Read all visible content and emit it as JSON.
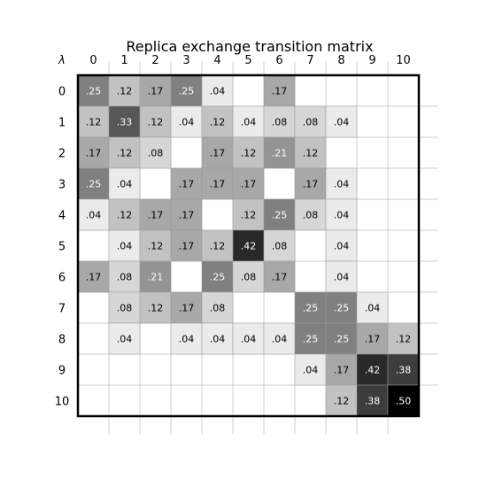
{
  "chart_data": {
    "type": "heatmap",
    "title": "Replica exchange transition matrix",
    "axis_symbol": "λ",
    "x_ticks": [
      "0",
      "1",
      "2",
      "3",
      "4",
      "5",
      "6",
      "7",
      "8",
      "9",
      "10"
    ],
    "y_ticks": [
      "0",
      "1",
      "2",
      "3",
      "4",
      "5",
      "6",
      "7",
      "8",
      "9",
      "10"
    ],
    "colormap": "gray_r",
    "value_range": [
      0,
      0.5
    ],
    "grid": true,
    "matrix": [
      [
        0.25,
        0.12,
        0.17,
        0.25,
        0.04,
        null,
        0.17,
        null,
        null,
        null,
        null
      ],
      [
        0.12,
        0.33,
        0.12,
        0.04,
        0.12,
        0.04,
        0.08,
        0.08,
        0.04,
        null,
        null
      ],
      [
        0.17,
        0.12,
        0.08,
        null,
        0.17,
        0.12,
        0.21,
        0.12,
        null,
        null,
        null
      ],
      [
        0.25,
        0.04,
        null,
        0.17,
        0.17,
        0.17,
        null,
        0.17,
        0.04,
        null,
        null
      ],
      [
        0.04,
        0.12,
        0.17,
        0.17,
        null,
        0.12,
        0.25,
        0.08,
        0.04,
        null,
        null
      ],
      [
        null,
        0.04,
        0.12,
        0.17,
        0.12,
        0.42,
        0.08,
        null,
        0.04,
        null,
        null
      ],
      [
        0.17,
        0.08,
        0.21,
        null,
        0.25,
        0.08,
        0.17,
        null,
        0.04,
        null,
        null
      ],
      [
        null,
        0.08,
        0.12,
        0.17,
        0.08,
        null,
        null,
        0.25,
        0.25,
        0.04,
        null
      ],
      [
        null,
        0.04,
        null,
        0.04,
        0.04,
        0.04,
        0.04,
        0.25,
        0.25,
        0.17,
        0.12
      ],
      [
        null,
        null,
        null,
        null,
        null,
        null,
        null,
        0.04,
        0.17,
        0.42,
        0.38
      ],
      [
        null,
        null,
        null,
        null,
        null,
        null,
        null,
        null,
        0.12,
        0.38,
        0.5
      ]
    ],
    "labels": [
      [
        ".25",
        ".12",
        ".17",
        ".25",
        ".04",
        "",
        ".17",
        "",
        "",
        "",
        ""
      ],
      [
        ".12",
        ".33",
        ".12",
        ".04",
        ".12",
        ".04",
        ".08",
        ".08",
        ".04",
        "",
        ""
      ],
      [
        ".17",
        ".12",
        ".08",
        "",
        ".17",
        ".12",
        ".21",
        ".12",
        "",
        "",
        ""
      ],
      [
        ".25",
        ".04",
        "",
        ".17",
        ".17",
        ".17",
        "",
        ".17",
        ".04",
        "",
        ""
      ],
      [
        ".04",
        ".12",
        ".17",
        ".17",
        "",
        ".12",
        ".25",
        ".08",
        ".04",
        "",
        ""
      ],
      [
        "",
        ".04",
        ".12",
        ".17",
        ".12",
        ".42",
        ".08",
        "",
        ".04",
        "",
        ""
      ],
      [
        ".17",
        ".08",
        ".21",
        "",
        ".25",
        ".08",
        ".17",
        "",
        ".04",
        "",
        ""
      ],
      [
        "",
        ".08",
        ".12",
        ".17",
        ".08",
        "",
        "",
        ".25",
        ".25",
        ".04",
        ""
      ],
      [
        "",
        ".04",
        "",
        ".04",
        ".04",
        ".04",
        ".04",
        ".25",
        ".25",
        ".17",
        ".12"
      ],
      [
        "",
        "",
        "",
        "",
        "",
        "",
        "",
        ".04",
        ".17",
        ".42",
        ".38"
      ],
      [
        "",
        "",
        "",
        "",
        "",
        "",
        "",
        "",
        ".12",
        ".38",
        ".50"
      ]
    ]
  }
}
